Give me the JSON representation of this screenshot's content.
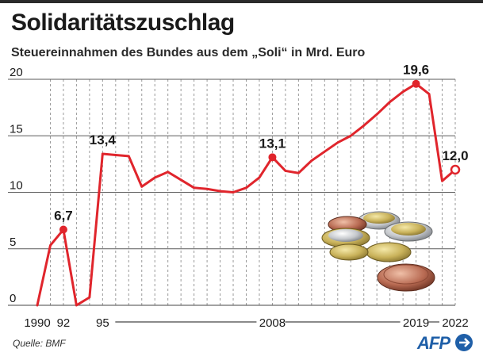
{
  "title": "Solidaritätszuschlag",
  "subtitle": "Steuereinnahmen des Bundes aus dem „Soli“ in Mrd. Euro",
  "source": "Quelle: BMF",
  "logo": "AFP",
  "colors": {
    "line": "#e0252c",
    "grid": "#9a9a9a",
    "axis": "#444444",
    "text": "#1a1a1a",
    "logo": "#1f5fa8"
  },
  "chart_data": {
    "type": "line",
    "title": "Solidaritätszuschlag",
    "subtitle": "Steuereinnahmen des Bundes aus dem „Soli“ in Mrd. Euro",
    "ylim": [
      0,
      20
    ],
    "yticks": [
      0,
      5,
      10,
      15,
      20
    ],
    "xlim": [
      1990,
      2022
    ],
    "x_tick_labels": [
      "1990",
      "92",
      "95",
      "2008",
      "2019",
      "2022"
    ],
    "x": [
      1990,
      1991,
      1992,
      1993,
      1994,
      1995,
      1996,
      1997,
      1998,
      1999,
      2000,
      2001,
      2002,
      2003,
      2004,
      2005,
      2006,
      2007,
      2008,
      2009,
      2010,
      2011,
      2012,
      2013,
      2014,
      2015,
      2016,
      2017,
      2018,
      2019,
      2020,
      2021,
      2022
    ],
    "y": [
      0,
      5.3,
      6.7,
      0,
      0.7,
      13.4,
      13.3,
      13.2,
      10.5,
      11.3,
      11.8,
      11.1,
      10.4,
      10.3,
      10.1,
      10.0,
      10.4,
      11.3,
      13.1,
      11.9,
      11.7,
      12.8,
      13.6,
      14.4,
      15.0,
      15.9,
      16.9,
      18.0,
      18.9,
      19.6,
      18.7,
      11.0,
      12.0
    ],
    "annotations": [
      {
        "x": 1992,
        "label": "6,7",
        "marker": "filled"
      },
      {
        "x": 1995,
        "label": "13,4",
        "marker": "none"
      },
      {
        "x": 2008,
        "label": "13,1",
        "marker": "filled"
      },
      {
        "x": 2019,
        "label": "19,6",
        "marker": "filled"
      },
      {
        "x": 2022,
        "label": "12,0",
        "marker": "open"
      }
    ],
    "grid": "vertical dashed lines per year, horizontal lines at y ticks",
    "legend": "none"
  }
}
